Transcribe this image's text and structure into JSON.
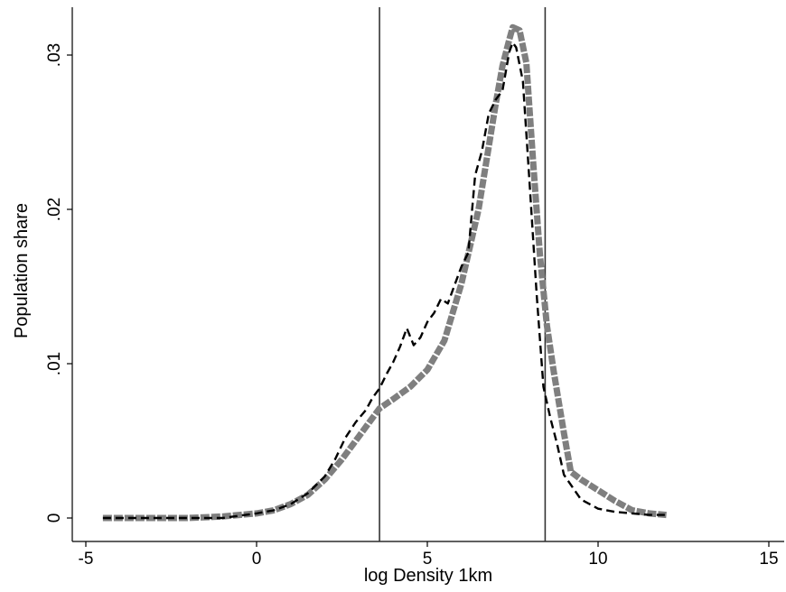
{
  "chart_data": {
    "type": "line",
    "title": "",
    "xlabel": "log Density 1km",
    "ylabel": "Population share",
    "xlim": [
      -5,
      15
    ],
    "ylim": [
      0,
      0.032
    ],
    "x_ticks": [
      {
        "value": -5,
        "label": "-5"
      },
      {
        "value": 0,
        "label": "0"
      },
      {
        "value": 5,
        "label": "5"
      },
      {
        "value": 10,
        "label": "10"
      },
      {
        "value": 15,
        "label": "15"
      }
    ],
    "y_ticks": [
      {
        "value": 0,
        "label": "0"
      },
      {
        "value": 0.01,
        "label": ".01"
      },
      {
        "value": 0.02,
        "label": ".02"
      },
      {
        "value": 0.03,
        "label": ".03"
      }
    ],
    "grid": false,
    "legend": "none",
    "vlines": [
      3.6,
      8.45
    ],
    "series": [
      {
        "style": "thick-gray-dashed",
        "color": "#7f7f7f",
        "x": [
          -4.5,
          -3,
          -2,
          -1,
          -0.5,
          0,
          0.5,
          1,
          1.5,
          2,
          2.5,
          3,
          3.3,
          3.6,
          4,
          4.5,
          5,
          5.5,
          6,
          6.5,
          7,
          7.2,
          7.4,
          7.5,
          7.7,
          7.9,
          8.1,
          8.3,
          8.5,
          8.7,
          9,
          9.2,
          9.5,
          10,
          10.5,
          11,
          11.5,
          12
        ],
        "y": [
          0,
          0,
          0,
          0.0001,
          0.0002,
          0.0003,
          0.0005,
          0.0009,
          0.0015,
          0.0025,
          0.0038,
          0.0053,
          0.0062,
          0.0071,
          0.0077,
          0.0085,
          0.0096,
          0.0115,
          0.0152,
          0.02,
          0.0268,
          0.0293,
          0.031,
          0.0318,
          0.0316,
          0.0295,
          0.023,
          0.017,
          0.0125,
          0.0095,
          0.0055,
          0.003,
          0.0025,
          0.0018,
          0.0011,
          0.0005,
          0.0003,
          0.0002
        ]
      },
      {
        "style": "thin-black-dashed",
        "color": "#000000",
        "x": [
          -4.5,
          -3,
          -2,
          -1,
          0,
          0.5,
          1,
          1.5,
          2,
          2.3,
          2.6,
          2.9,
          3.2,
          3.4,
          3.6,
          3.8,
          4.0,
          4.2,
          4.4,
          4.6,
          4.8,
          5.0,
          5.2,
          5.4,
          5.6,
          5.8,
          6.0,
          6.2,
          6.4,
          6.6,
          6.8,
          7.0,
          7.2,
          7.4,
          7.5,
          7.6,
          7.8,
          8.0,
          8.2,
          8.4,
          8.6,
          8.8,
          9.0,
          9.5,
          10,
          10.5,
          11,
          11.5,
          12
        ],
        "y": [
          0,
          0,
          0,
          0,
          0.0003,
          0.0005,
          0.0009,
          0.0016,
          0.0027,
          0.0038,
          0.0052,
          0.0062,
          0.007,
          0.0078,
          0.0084,
          0.0093,
          0.0101,
          0.0111,
          0.0123,
          0.0112,
          0.0117,
          0.0127,
          0.0133,
          0.0142,
          0.0139,
          0.0151,
          0.0163,
          0.0172,
          0.0222,
          0.0238,
          0.0262,
          0.0271,
          0.0277,
          0.0302,
          0.0308,
          0.0305,
          0.0283,
          0.0215,
          0.0145,
          0.0085,
          0.0065,
          0.0048,
          0.0028,
          0.0012,
          0.0006,
          0.0004,
          0.0003,
          0.0002,
          0.0002
        ]
      }
    ]
  }
}
